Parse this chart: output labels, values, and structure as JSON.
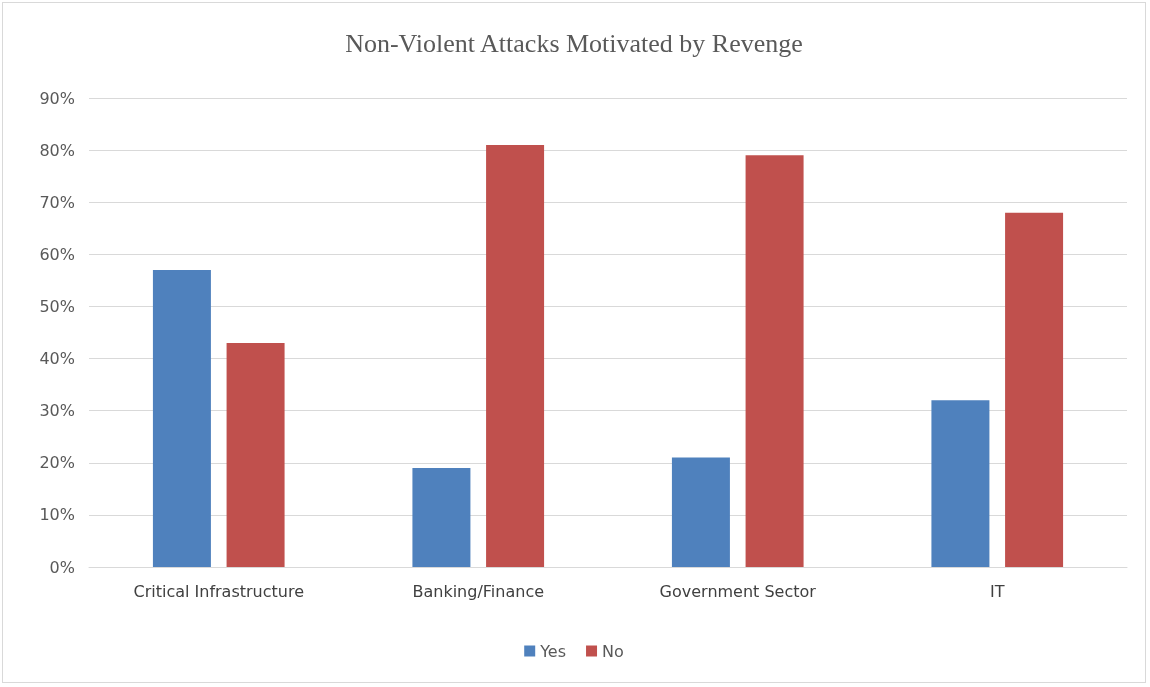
{
  "chart_data": {
    "type": "bar",
    "title": "Non-Violent Attacks Motivated by Revenge",
    "categories": [
      "Critical Infrastructure",
      "Banking/Finance",
      "Government Sector",
      "IT"
    ],
    "series": [
      {
        "name": "Yes",
        "color": "#4f81bd",
        "values": [
          57,
          19,
          21,
          32
        ]
      },
      {
        "name": "No",
        "color": "#c0504d",
        "values": [
          43,
          81,
          79,
          68
        ]
      }
    ],
    "ylim": [
      0,
      90
    ],
    "yticks": [
      {
        "value": 0,
        "label": "0%"
      },
      {
        "value": 10,
        "label": "10%"
      },
      {
        "value": 20,
        "label": "20%"
      },
      {
        "value": 30,
        "label": "30%"
      },
      {
        "value": 40,
        "label": "40%"
      },
      {
        "value": 50,
        "label": "50%"
      },
      {
        "value": 60,
        "label": "60%"
      },
      {
        "value": 70,
        "label": "70%"
      },
      {
        "value": 80,
        "label": "80%"
      },
      {
        "value": 90,
        "label": "90%"
      }
    ],
    "grid": "y",
    "legend": "bottom"
  }
}
